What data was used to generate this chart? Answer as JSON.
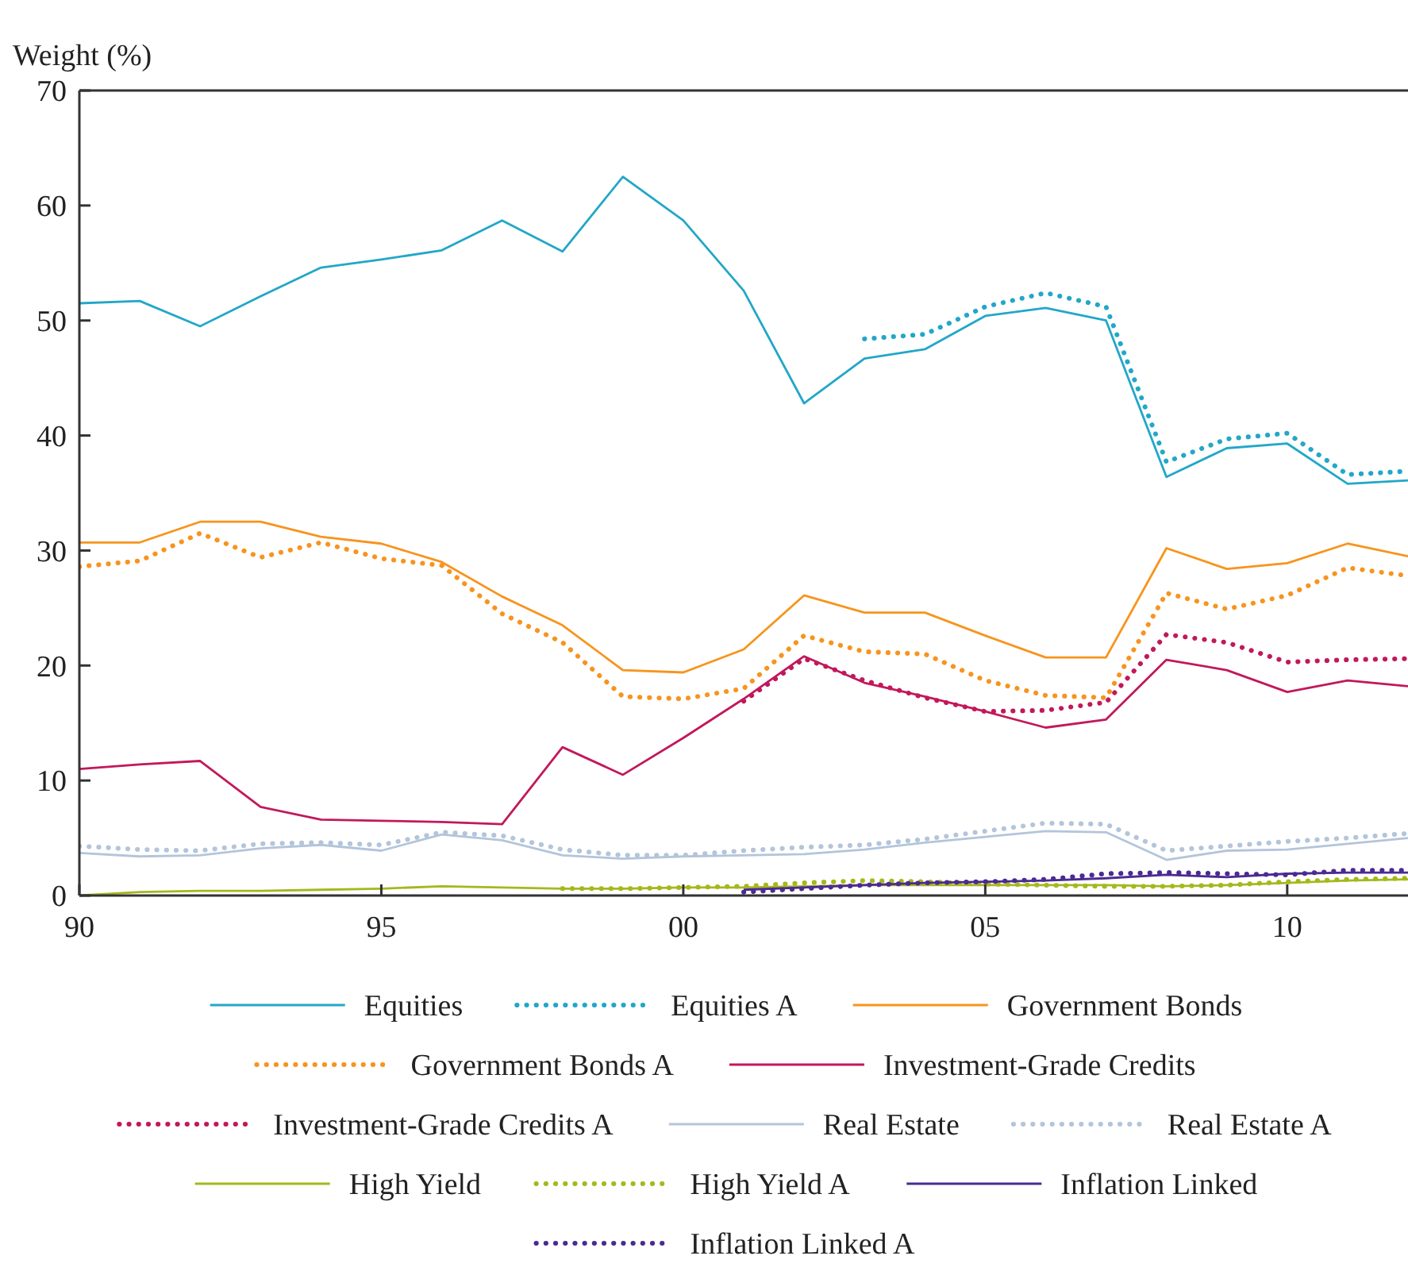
{
  "chart_data": {
    "type": "line",
    "ylabel": "Weight (%)",
    "xlim": [
      1990,
      2012
    ],
    "ylim": [
      0,
      70
    ],
    "xticks": [
      {
        "value": 1990,
        "label": "90"
      },
      {
        "value": 1995,
        "label": "95"
      },
      {
        "value": 2000,
        "label": "00"
      },
      {
        "value": 2005,
        "label": "05"
      },
      {
        "value": 2010,
        "label": "10"
      }
    ],
    "yticks": [
      0,
      10,
      20,
      30,
      40,
      50,
      60,
      70
    ],
    "grid": false,
    "legend": "bottom",
    "marker": "none",
    "x": [
      1990,
      1991,
      1992,
      1993,
      1994,
      1995,
      1996,
      1997,
      1998,
      1999,
      2000,
      2001,
      2002,
      2003,
      2004,
      2005,
      2006,
      2007,
      2008,
      2009,
      2010,
      2011,
      2012
    ],
    "series": [
      {
        "name": "Equities",
        "color": "#22a7c8",
        "line_style": "solid",
        "values": [
          51.5,
          51.7,
          49.5,
          52.1,
          54.6,
          55.3,
          56.1,
          58.7,
          56.0,
          62.5,
          58.7,
          52.6,
          42.8,
          46.7,
          47.5,
          50.4,
          51.1,
          50.0,
          36.4,
          38.9,
          39.3,
          35.8,
          36.1
        ]
      },
      {
        "name": "Equities A",
        "color": "#22a7c8",
        "line_style": "dotted",
        "values": [
          null,
          null,
          null,
          null,
          null,
          null,
          null,
          null,
          null,
          null,
          null,
          null,
          null,
          48.4,
          48.8,
          51.2,
          52.4,
          51.2,
          37.7,
          39.7,
          40.2,
          36.6,
          36.9
        ]
      },
      {
        "name": "Government Bonds",
        "color": "#f7941d",
        "line_style": "solid",
        "values": [
          30.7,
          30.7,
          32.5,
          32.5,
          31.2,
          30.6,
          29.0,
          26.0,
          23.5,
          19.6,
          19.4,
          21.4,
          26.1,
          24.6,
          24.6,
          22.6,
          20.7,
          20.7,
          30.2,
          28.4,
          28.9,
          30.6,
          29.5
        ]
      },
      {
        "name": "Government Bonds A",
        "color": "#f7941d",
        "line_style": "dotted",
        "values": [
          28.6,
          29.1,
          31.5,
          29.4,
          30.7,
          29.3,
          28.7,
          24.5,
          22.0,
          17.3,
          17.1,
          18.0,
          22.6,
          21.2,
          21.0,
          18.7,
          17.4,
          17.2,
          26.3,
          24.9,
          26.1,
          28.5,
          27.8
        ]
      },
      {
        "name": "Investment-Grade Credits",
        "color": "#c2185b",
        "line_style": "solid",
        "values": [
          11.0,
          11.4,
          11.7,
          7.7,
          6.6,
          6.5,
          6.4,
          6.2,
          12.9,
          10.5,
          13.7,
          17.1,
          20.8,
          18.5,
          17.3,
          16.0,
          14.6,
          15.3,
          20.5,
          19.6,
          17.7,
          18.7,
          18.2
        ]
      },
      {
        "name": "Investment-Grade Credits A",
        "color": "#c2185b",
        "line_style": "dotted",
        "values": [
          null,
          null,
          null,
          null,
          null,
          null,
          null,
          null,
          null,
          null,
          null,
          16.9,
          20.6,
          18.7,
          17.2,
          16.0,
          16.1,
          16.8,
          22.7,
          22.0,
          20.3,
          20.5,
          20.6
        ]
      },
      {
        "name": "Real Estate",
        "color": "#b3c5da",
        "line_style": "solid",
        "values": [
          3.7,
          3.4,
          3.5,
          4.1,
          4.4,
          3.9,
          5.3,
          4.8,
          3.5,
          3.2,
          3.4,
          3.5,
          3.6,
          4.0,
          4.6,
          5.1,
          5.6,
          5.5,
          3.1,
          3.9,
          4.0,
          4.5,
          5.0
        ]
      },
      {
        "name": "Real Estate A",
        "color": "#b3c5da",
        "line_style": "dotted",
        "values": [
          4.3,
          4.0,
          3.9,
          4.5,
          4.6,
          4.4,
          5.5,
          5.2,
          4.0,
          3.5,
          3.5,
          3.9,
          4.2,
          4.4,
          4.9,
          5.6,
          6.3,
          6.2,
          3.9,
          4.3,
          4.7,
          5.0,
          5.4
        ]
      },
      {
        "name": "High Yield",
        "color": "#a5b81c",
        "line_style": "solid",
        "values": [
          0.0,
          0.3,
          0.4,
          0.4,
          0.5,
          0.6,
          0.8,
          0.7,
          0.6,
          0.6,
          0.7,
          0.7,
          0.8,
          0.9,
          0.9,
          0.9,
          0.9,
          0.9,
          0.8,
          0.9,
          1.1,
          1.3,
          1.4
        ]
      },
      {
        "name": "High Yield A",
        "color": "#a5b81c",
        "line_style": "dotted",
        "values": [
          null,
          null,
          null,
          null,
          null,
          null,
          null,
          null,
          0.6,
          0.6,
          0.7,
          0.8,
          1.1,
          1.3,
          1.2,
          1.0,
          0.9,
          0.8,
          0.8,
          0.9,
          1.2,
          1.4,
          1.5
        ]
      },
      {
        "name": "Inflation Linked",
        "color": "#4b2a91",
        "line_style": "solid",
        "values": [
          null,
          null,
          null,
          null,
          null,
          null,
          null,
          null,
          null,
          null,
          null,
          0.5,
          0.7,
          0.9,
          1.1,
          1.2,
          1.3,
          1.5,
          1.8,
          1.6,
          1.9,
          2.0,
          2.0
        ]
      },
      {
        "name": "Inflation Linked A",
        "color": "#4b2a91",
        "line_style": "dotted",
        "values": [
          null,
          null,
          null,
          null,
          null,
          null,
          null,
          null,
          null,
          null,
          null,
          0.3,
          0.6,
          0.9,
          1.1,
          1.2,
          1.4,
          1.9,
          2.0,
          1.9,
          1.8,
          2.2,
          2.2
        ]
      }
    ]
  }
}
